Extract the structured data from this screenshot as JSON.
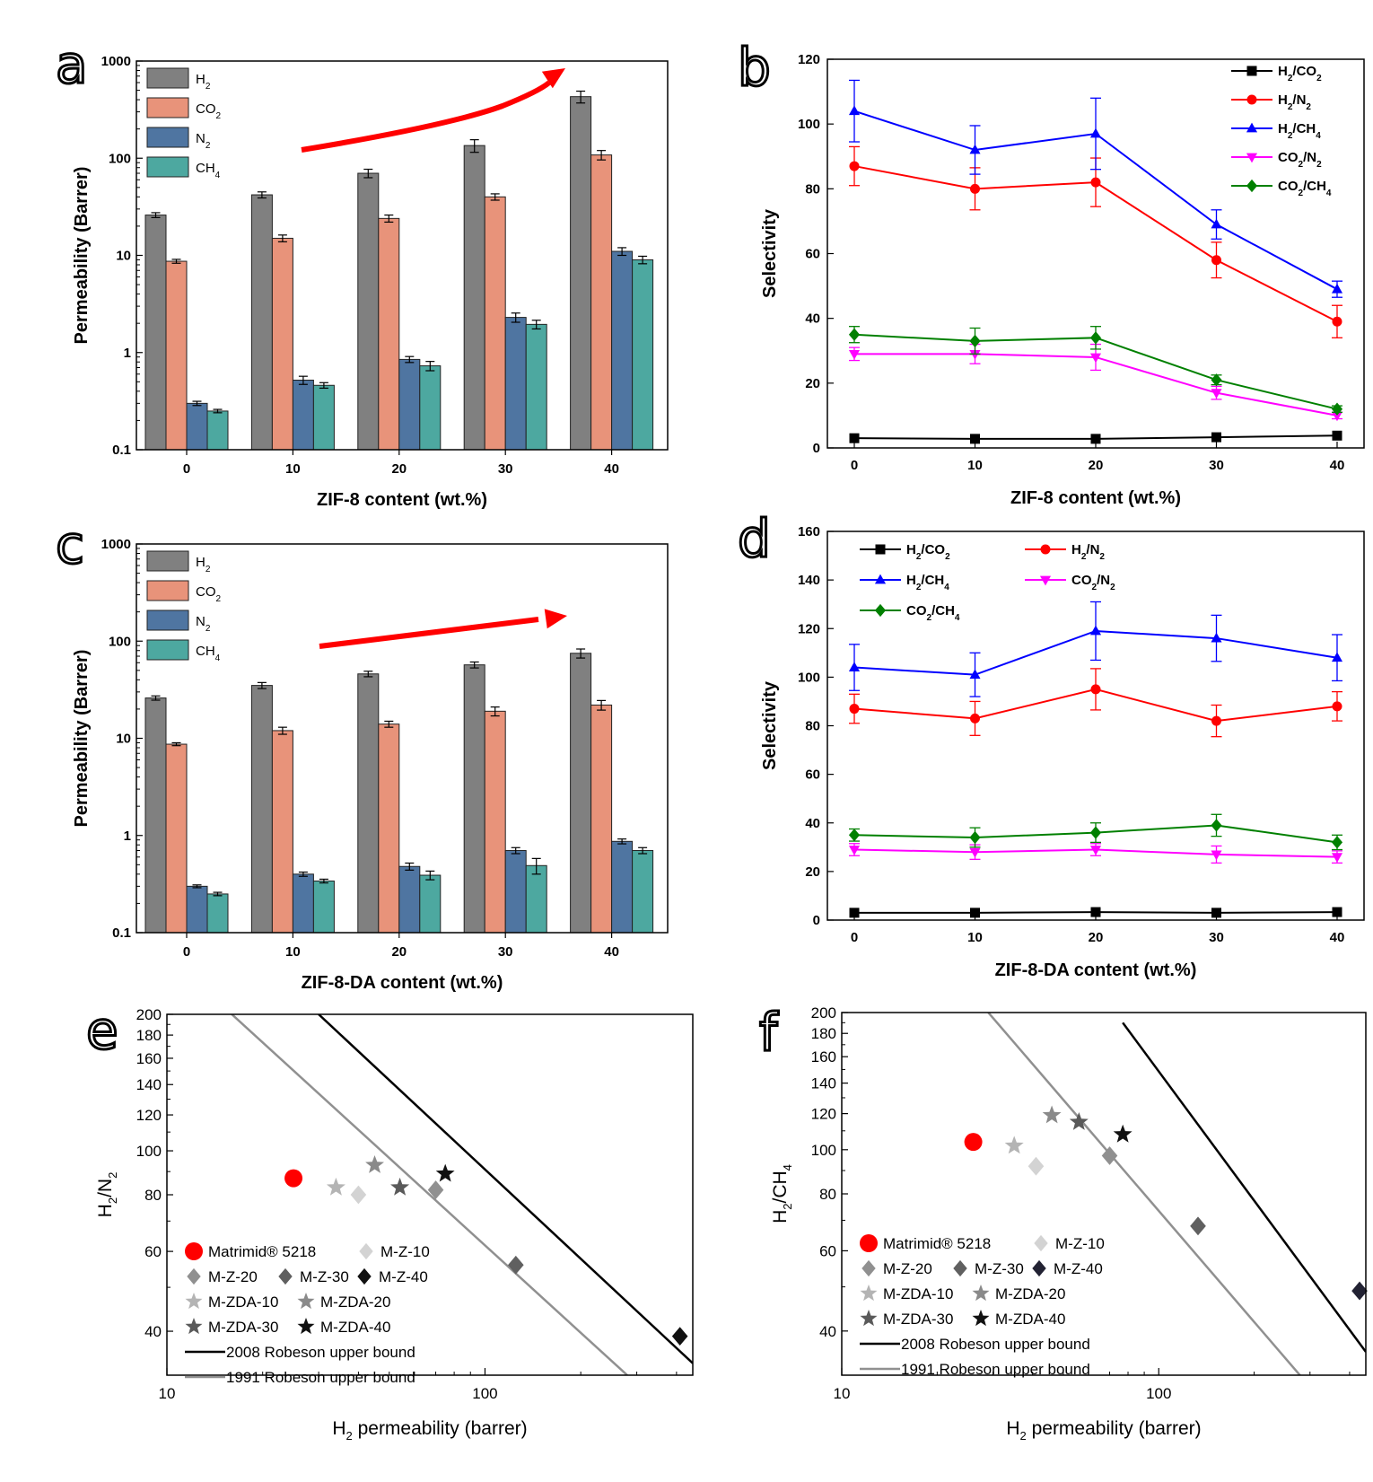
{
  "colors": {
    "H2": "#808080",
    "CO2": "#e8937a",
    "N2": "#4f75a1",
    "CH4": "#4da8a0",
    "sel_H2CO2": "#000000",
    "sel_H2N2": "#ff0000",
    "sel_H2CH4": "#0000ff",
    "sel_CO2N2": "#ff00ff",
    "sel_CO2CH4": "#008000",
    "arrow": "#ff0000",
    "rob2008": "#000000",
    "rob1991": "#909090"
  },
  "panels": {
    "a": {
      "letter": "a",
      "chart_data": {
        "type": "bar",
        "xlabel": "ZIF-8 content (wt.%)",
        "ylabel": "Permeability (Barrer)",
        "yscale": "log",
        "ylim": [
          0.1,
          1000
        ],
        "yticks": [
          "0.1",
          "1",
          "10",
          "100",
          "1000"
        ],
        "categories": [
          "0",
          "10",
          "20",
          "30",
          "40"
        ],
        "series": [
          {
            "name": "H",
            "sub": "2",
            "values": [
              26,
              42,
              70,
              135,
              430
            ],
            "err": [
              1.5,
              3,
              7,
              20,
              60
            ]
          },
          {
            "name": "CO",
            "sub": "2",
            "values": [
              8.7,
              15,
              24,
              40,
              108
            ],
            "err": [
              0.4,
              1.2,
              2,
              3,
              12
            ]
          },
          {
            "name": "N",
            "sub": "2",
            "values": [
              0.3,
              0.52,
              0.85,
              2.3,
              11
            ],
            "err": [
              0.015,
              0.05,
              0.06,
              0.25,
              1
            ]
          },
          {
            "name": "CH",
            "sub": "4",
            "values": [
              0.25,
              0.46,
              0.73,
              1.95,
              9
            ],
            "err": [
              0.01,
              0.03,
              0.08,
              0.2,
              0.8
            ]
          }
        ]
      }
    },
    "b": {
      "letter": "b",
      "chart_data": {
        "type": "line",
        "xlabel": "ZIF-8 content (wt.%)",
        "ylabel": "Selectivity",
        "x": [
          0,
          10,
          20,
          30,
          40
        ],
        "xlim": [
          0,
          40
        ],
        "ylim": [
          0,
          120
        ],
        "xticks": [
          "0",
          "10",
          "20",
          "30",
          "40"
        ],
        "yticks": [
          "0",
          "20",
          "40",
          "60",
          "80",
          "100",
          "120"
        ],
        "series": [
          {
            "name": "H",
            "sub1": "2",
            "name2": "/CO",
            "sub2": "2",
            "marker": "square",
            "values": [
              3,
              2.8,
              2.8,
              3.3,
              3.8
            ],
            "err": [
              0,
              0,
              0,
              0,
              0
            ]
          },
          {
            "name": "H",
            "sub1": "2",
            "name2": "/N",
            "sub2": "2",
            "marker": "circle",
            "values": [
              87,
              80,
              82,
              58,
              39
            ],
            "err": [
              6,
              6.5,
              7.5,
              5.5,
              5
            ]
          },
          {
            "name": "H",
            "sub1": "2",
            "name2": "/CH",
            "sub2": "4",
            "marker": "triangle-up",
            "values": [
              104,
              92,
              97,
              69,
              49
            ],
            "err": [
              9.5,
              7.5,
              11,
              4.5,
              2.5
            ]
          },
          {
            "name": "CO",
            "sub1": "2",
            "name2": "/N",
            "sub2": "2",
            "marker": "triangle-down",
            "values": [
              29,
              29,
              28,
              17,
              10
            ],
            "err": [
              2,
              3,
              4,
              2,
              1
            ]
          },
          {
            "name": "CO",
            "sub1": "2",
            "name2": "/CH",
            "sub2": "4",
            "marker": "diamond",
            "values": [
              35,
              33,
              34,
              21,
              12
            ],
            "err": [
              2.5,
              4,
              3.5,
              1.5,
              1
            ]
          }
        ]
      }
    },
    "c": {
      "letter": "c",
      "chart_data": {
        "type": "bar",
        "xlabel": "ZIF-8-DA content (wt.%)",
        "ylabel": "Permeability (Barrer)",
        "yscale": "log",
        "ylim": [
          0.1,
          1000
        ],
        "yticks": [
          "0.1",
          "1",
          "10",
          "100",
          "1000"
        ],
        "categories": [
          "0",
          "10",
          "20",
          "30",
          "40"
        ],
        "series": [
          {
            "name": "H",
            "sub": "2",
            "values": [
              26,
              35,
              46,
              57,
              75
            ],
            "err": [
              1.3,
              2.5,
              3,
              4,
              8
            ]
          },
          {
            "name": "CO",
            "sub": "2",
            "values": [
              8.7,
              12,
              14,
              19,
              22
            ],
            "err": [
              0.3,
              1,
              1,
              2,
              2.5
            ]
          },
          {
            "name": "N",
            "sub": "2",
            "values": [
              0.3,
              0.4,
              0.48,
              0.7,
              0.87
            ],
            "err": [
              0.01,
              0.02,
              0.04,
              0.05,
              0.05
            ]
          },
          {
            "name": "CH",
            "sub": "4",
            "values": [
              0.25,
              0.34,
              0.39,
              0.49,
              0.7
            ],
            "err": [
              0.01,
              0.015,
              0.04,
              0.09,
              0.05
            ]
          }
        ]
      }
    },
    "d": {
      "letter": "d",
      "chart_data": {
        "type": "line",
        "xlabel": "ZIF-8-DA content (wt.%)",
        "ylabel": "Selectivity",
        "x": [
          0,
          10,
          20,
          30,
          40
        ],
        "xlim": [
          0,
          40
        ],
        "ylim": [
          0,
          160
        ],
        "xticks": [
          "0",
          "10",
          "20",
          "30",
          "40"
        ],
        "yticks": [
          "0",
          "20",
          "40",
          "60",
          "80",
          "100",
          "120",
          "140",
          "160"
        ],
        "series": [
          {
            "name": "H",
            "sub1": "2",
            "name2": "/CO",
            "sub2": "2",
            "marker": "square",
            "values": [
              3,
              3,
              3.3,
              3,
              3.3
            ],
            "err": [
              0,
              0,
              0,
              0,
              0
            ]
          },
          {
            "name": "H",
            "sub1": "2",
            "name2": "/N",
            "sub2": "2",
            "marker": "circle",
            "values": [
              87,
              83,
              95,
              82,
              88
            ],
            "err": [
              6,
              7,
              8.5,
              6.5,
              6
            ]
          },
          {
            "name": "H",
            "sub1": "2",
            "name2": "/CH",
            "sub2": "4",
            "marker": "triangle-up",
            "values": [
              104,
              101,
              119,
              116,
              108
            ],
            "err": [
              9.5,
              9,
              12,
              9.5,
              9.5
            ]
          },
          {
            "name": "CO",
            "sub1": "2",
            "name2": "/N",
            "sub2": "2",
            "marker": "triangle-down",
            "values": [
              29,
              28,
              29,
              27,
              26
            ],
            "err": [
              2.5,
              3,
              2.5,
              3.5,
              2.5
            ]
          },
          {
            "name": "CO",
            "sub1": "2",
            "name2": "/CH",
            "sub2": "4",
            "marker": "diamond",
            "values": [
              35,
              34,
              36,
              39,
              32
            ],
            "err": [
              2.5,
              4,
              4,
              4.5,
              3
            ]
          }
        ]
      }
    },
    "e": {
      "letter": "e",
      "chart_data": {
        "type": "scatter",
        "xlabel": "H",
        "xlabel_sub": "2",
        "xlabel_rest": " permeability (barrer)",
        "ylabel": "H",
        "ylabel_sub": "2",
        "ylabel_mid": "/N",
        "ylabel_sub2": "2",
        "xscale": "log",
        "yscale": "log",
        "xlim": [
          10,
          450
        ],
        "ylim": [
          32,
          200
        ],
        "xticks": [
          "10",
          "100"
        ],
        "yticks": [
          "40",
          "60",
          "80",
          "100",
          "120",
          "140",
          "160",
          "180",
          "200"
        ],
        "points": [
          {
            "label": "Matrimid® 5218",
            "marker": "circle",
            "color": "#ff0000",
            "x": 25,
            "y": 87
          },
          {
            "label": "M-Z-10",
            "marker": "diamond",
            "color": "#d3d3d3",
            "x": 40,
            "y": 80
          },
          {
            "label": "M-Z-20",
            "marker": "diamond",
            "color": "#909090",
            "x": 70,
            "y": 82
          },
          {
            "label": "M-Z-30",
            "marker": "diamond",
            "color": "#606060",
            "x": 125,
            "y": 56
          },
          {
            "label": "M-Z-40",
            "marker": "diamond",
            "color": "#111111",
            "x": 410,
            "y": 39
          },
          {
            "label": "M-ZDA-10",
            "marker": "star",
            "color": "#b4b4b4",
            "x": 34,
            "y": 83
          },
          {
            "label": "M-ZDA-20",
            "marker": "star",
            "color": "#8a8a8a",
            "x": 45,
            "y": 93
          },
          {
            "label": "M-ZDA-30",
            "marker": "star",
            "color": "#5a5a5a",
            "x": 54,
            "y": 83
          },
          {
            "label": "M-ZDA-40",
            "marker": "star",
            "color": "#111111",
            "x": 75,
            "y": 89
          }
        ],
        "lines": [
          {
            "label": "2008 Robeson upper bound",
            "x": [
              30,
              450
            ],
            "y": [
              200,
              34
            ]
          },
          {
            "label": "1991 Robeson upper bound",
            "x": [
              16,
              280
            ],
            "y": [
              200,
              32
            ]
          }
        ]
      }
    },
    "f": {
      "letter": "f",
      "chart_data": {
        "type": "scatter",
        "xlabel": "H",
        "xlabel_sub": "2",
        "xlabel_rest": " permeability (barrer)",
        "ylabel": "H",
        "ylabel_sub": "2",
        "ylabel_mid": "/CH",
        "ylabel_sub2": "4",
        "xscale": "log",
        "yscale": "log",
        "xlim": [
          10,
          450
        ],
        "ylim": [
          32,
          200
        ],
        "xticks": [
          "10",
          "100"
        ],
        "yticks": [
          "40",
          "60",
          "80",
          "100",
          "120",
          "140",
          "160",
          "180",
          "200"
        ],
        "points": [
          {
            "label": "Matrimid® 5218",
            "marker": "circle",
            "color": "#ff0000",
            "x": 26,
            "y": 104
          },
          {
            "label": "M-Z-10",
            "marker": "diamond",
            "color": "#d3d3d3",
            "x": 41,
            "y": 92
          },
          {
            "label": "M-Z-20",
            "marker": "diamond",
            "color": "#909090",
            "x": 70,
            "y": 97
          },
          {
            "label": "M-Z-30",
            "marker": "diamond",
            "color": "#606060",
            "x": 133,
            "y": 68
          },
          {
            "label": "M-Z-40",
            "marker": "diamond",
            "color": "#222233",
            "x": 430,
            "y": 49
          },
          {
            "label": "M-ZDA-10",
            "marker": "star",
            "color": "#b4b4b4",
            "x": 35,
            "y": 102
          },
          {
            "label": "M-ZDA-20",
            "marker": "star",
            "color": "#8a8a8a",
            "x": 46,
            "y": 119
          },
          {
            "label": "M-ZDA-30",
            "marker": "star",
            "color": "#5a5a5a",
            "x": 56,
            "y": 115
          },
          {
            "label": "M-ZDA-40",
            "marker": "star",
            "color": "#111111",
            "x": 77,
            "y": 108
          }
        ],
        "lines": [
          {
            "label": "2008 Robeson upper bound",
            "x": [
              77,
              450
            ],
            "y": [
              190,
              36
            ]
          },
          {
            "label": "1991 Robeson upper bound",
            "x": [
              29,
              290
            ],
            "y": [
              200,
              31
            ]
          }
        ]
      }
    }
  }
}
